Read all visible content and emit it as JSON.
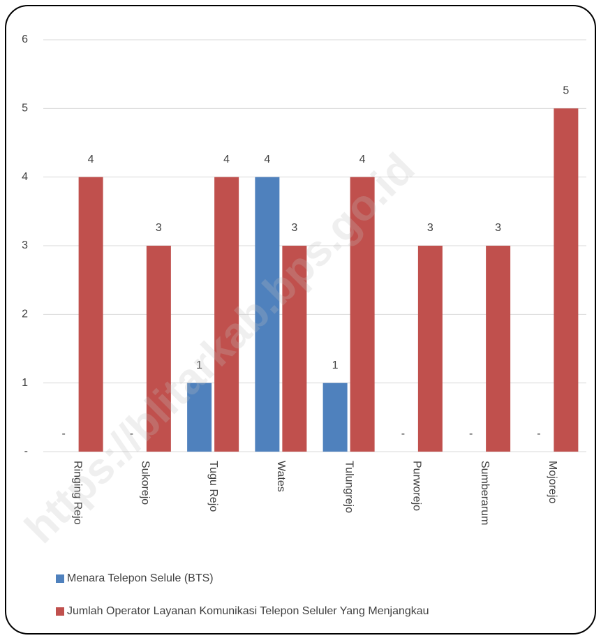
{
  "chart_data": {
    "type": "bar",
    "categories": [
      "Ringing Rejo",
      "Sukorejo",
      "Tugu Rejo",
      "Wates",
      "Tulungrejo",
      "Purworejo",
      "Sumberarum",
      "Mojorejo"
    ],
    "series": [
      {
        "name": "Menara Telepon Selule (BTS)",
        "color": "#4f81bd",
        "values": [
          0,
          0,
          1,
          4,
          1,
          0,
          0,
          0
        ],
        "value_labels": [
          "-",
          "-",
          "1",
          "4",
          "1",
          "-",
          "-",
          "-"
        ]
      },
      {
        "name": "Jumlah Operator Layanan Komunikasi Telepon Seluler Yang Menjangkau",
        "color": "#c0504d",
        "values": [
          4,
          3,
          4,
          3,
          4,
          3,
          3,
          5
        ]
      }
    ],
    "ylim": [
      0,
      6
    ],
    "yticks": [
      {
        "value": 0,
        "label": "-"
      },
      1,
      2,
      3,
      4,
      5,
      6
    ],
    "grid": true,
    "legend": "bottom",
    "watermark": "https://blitarkab.bps.go.id"
  }
}
